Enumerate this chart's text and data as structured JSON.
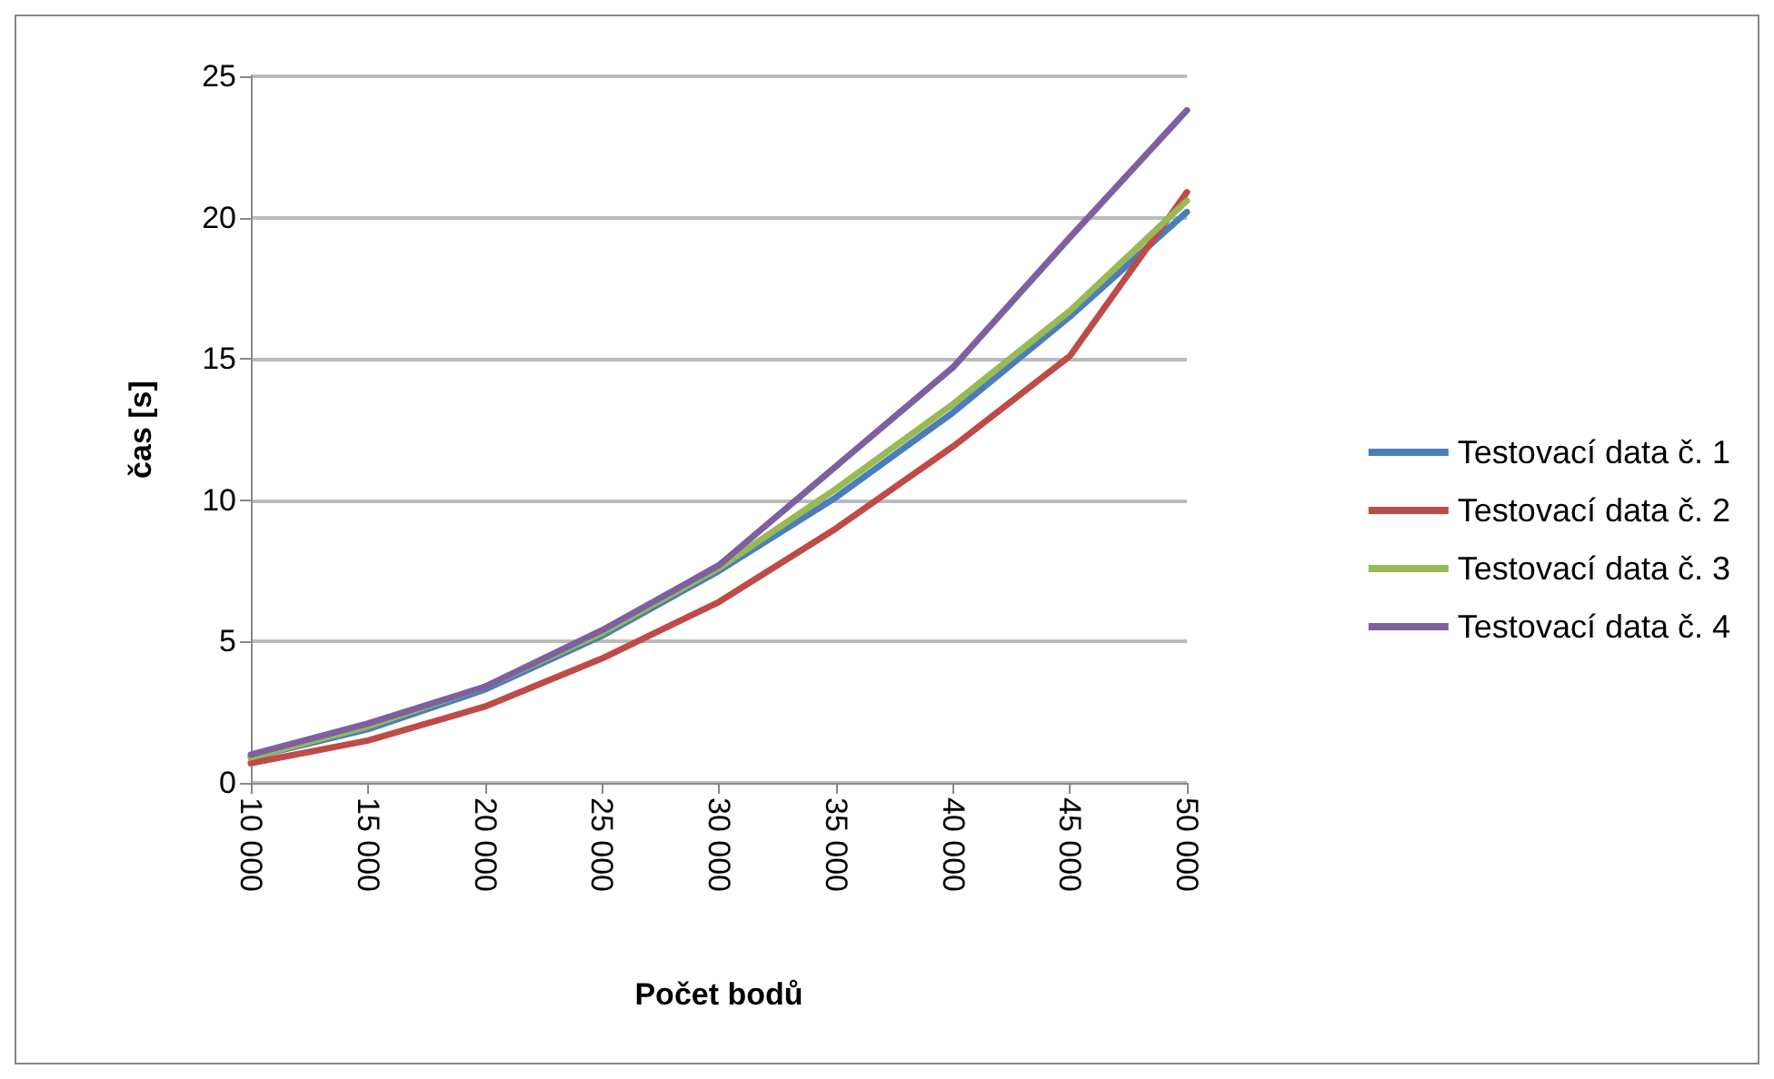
{
  "chart_data": {
    "type": "line",
    "xlabel": "Počet bodů",
    "ylabel": "čas [s]",
    "categories": [
      "10 000",
      "15 000",
      "20 000",
      "25 000",
      "30 000",
      "35 000",
      "40 000",
      "45 000",
      "50 000"
    ],
    "series": [
      {
        "name": "Testovací data č. 1",
        "color": "#4a7ebb",
        "values": [
          0.9,
          1.9,
          3.3,
          5.2,
          7.5,
          10.1,
          13.1,
          16.5,
          20.2
        ]
      },
      {
        "name": "Testovací data č. 2",
        "color": "#be4b48",
        "values": [
          0.7,
          1.5,
          2.7,
          4.4,
          6.4,
          9.0,
          11.9,
          15.1,
          20.9
        ]
      },
      {
        "name": "Testovací data č. 3",
        "color": "#98b954",
        "values": [
          0.9,
          2.0,
          3.4,
          5.3,
          7.6,
          10.4,
          13.4,
          16.7,
          20.6
        ]
      },
      {
        "name": "Testovací data č. 4",
        "color": "#7d60a0",
        "values": [
          1.0,
          2.1,
          3.4,
          5.4,
          7.7,
          11.2,
          14.7,
          19.3,
          23.8
        ]
      }
    ],
    "ylim": [
      0,
      25
    ],
    "yticks": [
      0,
      5,
      10,
      15,
      20,
      25
    ],
    "grid": "y",
    "legend": "right",
    "marker": "none"
  }
}
